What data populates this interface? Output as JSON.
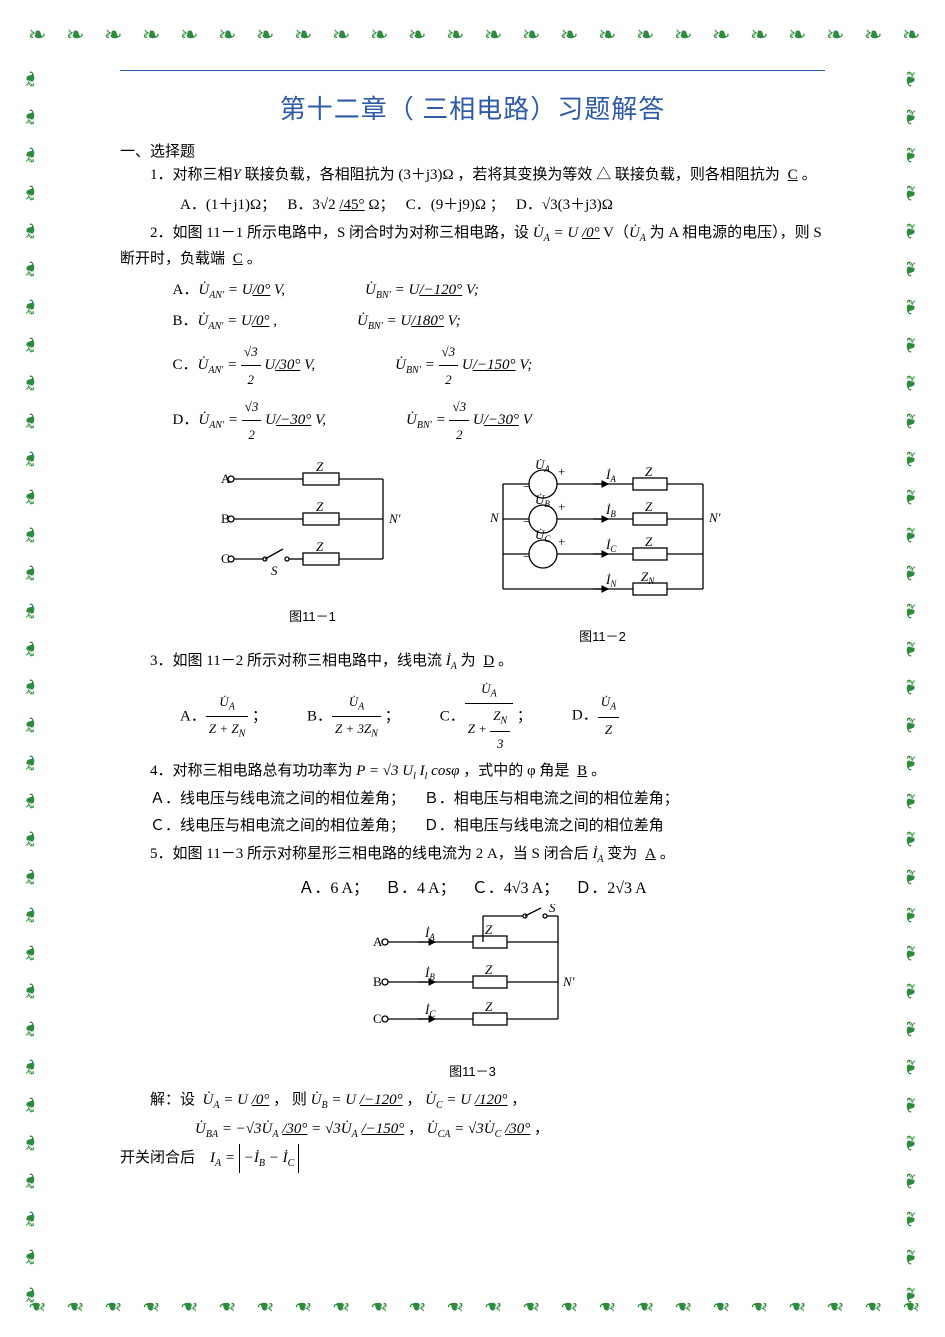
{
  "chapterTitle": "第十二章（ 三相电路）习题解答",
  "sectionHeading": "一、选择题",
  "q1": {
    "prefix": "1．对称三相",
    "mid": " 联接负载，各相阻抗为 (3＋j3)Ω ，若将其变换为等效 △ 联接负载，则各相阻抗为",
    "answer": "C",
    "suffix": "。",
    "optA": "A．(1＋j1)Ω；",
    "optB_pre": "B．3",
    "optB_post": " Ω；",
    "optB_angle": "/45°",
    "optC": "C．(9＋j9)Ω ；",
    "optD_pre": "D．",
    "optD_mid": "(3＋j3)Ω"
  },
  "q2": {
    "text_a": "2．如图 11－1 所示电路中，S 闭合时为对称三相电路，设",
    "phasor": "U̇",
    "eq1_rhs": "= U ",
    "angle0": "/0°",
    "unitV": " V（",
    "text_b": " 为 A 相电源的电压），则 S 断开时，负载端",
    "answer": "C",
    "optA_l": "A．",
    "optB_l": "B．",
    "optC_l": "C．",
    "optD_l": "D．",
    "angle_m120": "/−120°",
    "angle_180": "/180°",
    "angle_30": "/30°",
    "angle_m150": "/−150°",
    "angle_m30": "/−30°"
  },
  "fig11_1_caption": "图11－1",
  "fig11_2_caption": "图11－2",
  "q3": {
    "text": "3．如图 11－2 所示对称三相电路中，线电流",
    "sym": "İ",
    "text2": "为",
    "answer": "D",
    "labelA": "A．",
    "labelB": "B．",
    "labelC": "C．",
    "labelD": "D．",
    "den1": "Z + Z",
    "den2": "Z + 3Z",
    "den3_top": "Z + ",
    "den4": "Z"
  },
  "q4": {
    "text1": "4．对称三相电路总有功功率为 ",
    "eqP": "P = √3 U",
    "sub_l": "l",
    "eqP2": " I",
    "eqP3": " cosφ",
    "text2": " ，式中的 φ 角是",
    "answer": "B",
    "optA": "Ａ．线电压与线电流之间的相位差角；",
    "optB": "Ｂ．相电压与相电流之间的相位差角；",
    "optC": "Ｃ．线电压与相电流之间的相位差角；",
    "optD": "Ｄ．相电压与线电流之间的相位差角"
  },
  "q5": {
    "text1": "5．如图 11－3 所示对称星形三相电路的线电流为 2 A，当 S 闭合后",
    "sym": "İ",
    "text2": "变为",
    "answer": "A",
    "optA": "Ａ．6 A；",
    "optB": "Ｂ．4 A；",
    "optC_pre": "Ｃ．4",
    "optC_post": " A；",
    "optD_pre": "Ｄ．2",
    "optD_post": " A"
  },
  "fig11_3_caption": "图11－3",
  "solution": {
    "label": "解：设",
    "u": "U̇",
    "eqU": " = U ",
    "then": "， 则",
    "angle_m120": "/−120°",
    "angle_120": "/120°",
    "line2_pre": "= −√3",
    "line2_mid": " = √3",
    "line3": "开关闭合后",
    "IA": "I",
    "abs_inner": "−İ"
  },
  "circuit_labels": {
    "A": "A",
    "B": "B",
    "C": "C",
    "N": "N",
    "Np": "N′",
    "Z": "Z",
    "ZN": "Z",
    "S": "S",
    "UA": "U̇",
    "UB": "U̇",
    "UC": "U̇",
    "iA": "İ",
    "iB": "İ",
    "iC": "İ",
    "iN": "İ"
  },
  "style": {
    "title_color": "#2e5aa8",
    "leaf_color": "#2e8b3d",
    "text_color": "#000000",
    "title_fontsize": 26,
    "body_fontsize": 15
  },
  "decor": {
    "leaf_glyph": "❧"
  }
}
